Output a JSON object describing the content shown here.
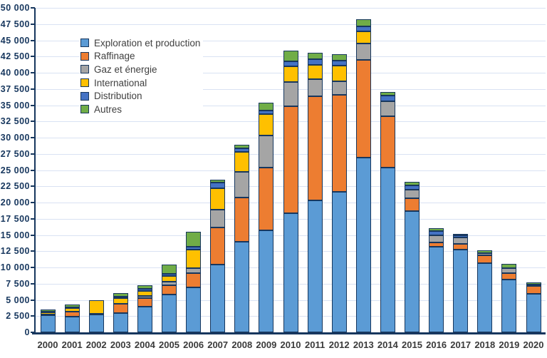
{
  "chart_data": {
    "type": "bar",
    "stacked": true,
    "title": "",
    "xlabel": "",
    "ylabel": "",
    "categories": [
      "2000",
      "2001",
      "2002",
      "2003",
      "2004",
      "2005",
      "2006",
      "2007",
      "2008",
      "2009",
      "2010",
      "2011",
      "2012",
      "2013",
      "2014",
      "2015",
      "2016",
      "2017",
      "2018",
      "2019",
      "2020"
    ],
    "series": [
      {
        "name": "Exploration et production",
        "color": "#5B9BD5",
        "values": [
          2650,
          2400,
          2800,
          3000,
          4000,
          5800,
          6900,
          10400,
          14000,
          15700,
          18300,
          20350,
          21700,
          26900,
          25400,
          18700,
          13200,
          12700,
          10700,
          8100,
          5900
        ]
      },
      {
        "name": "Raffinage",
        "color": "#ED7D31",
        "values": [
          100,
          800,
          100,
          1350,
          1300,
          1450,
          2200,
          5750,
          6750,
          9700,
          16500,
          16050,
          14900,
          15100,
          7900,
          2000,
          600,
          900,
          1150,
          1050,
          1250
        ]
      },
      {
        "name": "Gaz et énergie",
        "color": "#A5A5A5",
        "values": [
          0,
          0,
          0,
          100,
          300,
          600,
          750,
          2700,
          3950,
          4950,
          3800,
          2600,
          2100,
          2500,
          2350,
          1300,
          1200,
          1050,
          300,
          700,
          250
        ]
      },
      {
        "name": "International",
        "color": "#FFC000",
        "values": [
          350,
          550,
          2000,
          850,
          800,
          850,
          2850,
          3350,
          3100,
          3300,
          2400,
          2250,
          2400,
          1850,
          0,
          0,
          0,
          0,
          0,
          0,
          0
        ]
      },
      {
        "name": "Distribution",
        "color": "#4472C4",
        "values": [
          100,
          150,
          0,
          250,
          350,
          350,
          450,
          850,
          550,
          550,
          750,
          850,
          800,
          800,
          800,
          600,
          600,
          300,
          0,
          0,
          0
        ]
      },
      {
        "name": "Autres",
        "color": "#70AD47",
        "values": [
          300,
          400,
          0,
          450,
          550,
          1350,
          2350,
          450,
          550,
          1150,
          1650,
          1000,
          1000,
          1100,
          550,
          600,
          400,
          150,
          450,
          650,
          300
        ]
      }
    ],
    "ylim": [
      0,
      50000
    ],
    "y_tick_step": 2500,
    "y_tick_labels": [
      "0",
      "2 500",
      "5 000",
      "7 500",
      "10 000",
      "12 500",
      "15 000",
      "17 500",
      "20 000",
      "22 500",
      "25 000",
      "27 500",
      "30 000",
      "32 500",
      "35 000",
      "37 500",
      "40 000",
      "42 500",
      "45 000",
      "47 500",
      "50 000"
    ],
    "grid": "horizontal",
    "legend_position": "top-left-inside",
    "colors": {
      "axis": "#17375E",
      "gridline": "#D9E2F3",
      "segment_border": "#17375E",
      "y_label": "#17375E",
      "x_label": "#3A3A3A",
      "legend_text": "#404040",
      "background": "#FFFFFF"
    }
  }
}
